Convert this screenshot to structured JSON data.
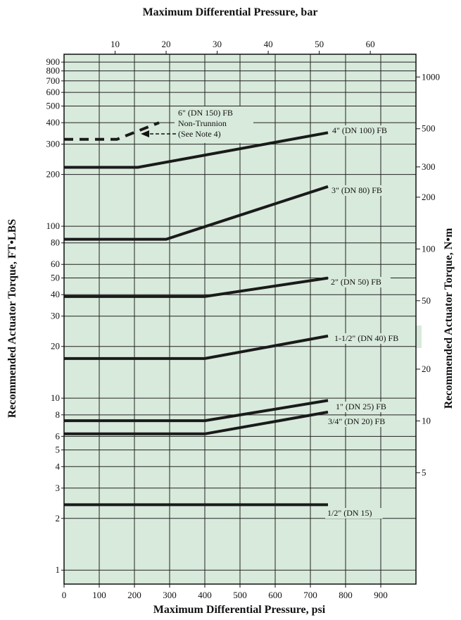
{
  "chart_data": {
    "type": "line",
    "title_top": "Maximum Differential Pressure, bar",
    "xlabel": "Maximum Differential Pressure, psi",
    "ylabel_left": "Recommended Actuator Torque, FT•LBS",
    "ylabel_right": "Recommended Actuator Torque, N•m",
    "x_scale": "linear",
    "y_scale": "log",
    "xlim": [
      0,
      1000
    ],
    "ylim": [
      0.83,
      1000
    ],
    "background_color": "#d8eadb",
    "line_color": "#1a1a1a",
    "grid": true,
    "x_ticks": [
      0,
      100,
      200,
      300,
      400,
      500,
      600,
      700,
      800,
      900
    ],
    "x_tick_labels": [
      "0",
      "100",
      "200",
      "300",
      "400",
      "500",
      "600",
      "700",
      "800",
      "900"
    ],
    "x_grid": [
      0,
      100,
      200,
      300,
      400,
      500,
      600,
      700,
      800,
      900,
      1000
    ],
    "bar_ticks": [
      10,
      20,
      30,
      40,
      50,
      60
    ],
    "bar_tick_labels": [
      "10",
      "20",
      "30",
      "40",
      "50",
      "60"
    ],
    "y_left_ticks": [
      1,
      2,
      3,
      4,
      5,
      6,
      8,
      10,
      20,
      30,
      40,
      50,
      60,
      80,
      100,
      200,
      300,
      400,
      500,
      600,
      700,
      800,
      900
    ],
    "y_left_tick_labels": [
      "1",
      "2",
      "3",
      "4",
      "5",
      "6",
      "8",
      "10",
      "20",
      "30",
      "40",
      "50",
      "60",
      "80",
      "100",
      "200",
      "300",
      "400",
      "500",
      "600",
      "700",
      "800",
      "900"
    ],
    "y_right_ticks": [
      5,
      10,
      20,
      50,
      100,
      200,
      300,
      500,
      1000
    ],
    "y_right_tick_labels": [
      "5",
      "10",
      "20",
      "50",
      "100",
      "200",
      "300",
      "500",
      "1000"
    ],
    "series": [
      {
        "name": "1/2\" (DN 15)",
        "style": "solid",
        "x": [
          0,
          750
        ],
        "y": [
          2.4,
          2.4
        ]
      },
      {
        "name": "3/4\" (DN 20) FB",
        "style": "solid",
        "x": [
          0,
          400,
          750
        ],
        "y": [
          6.2,
          6.2,
          8.3
        ]
      },
      {
        "name": "1\" (DN 25) FB",
        "style": "solid",
        "x": [
          0,
          400,
          750
        ],
        "y": [
          7.4,
          7.4,
          9.7
        ]
      },
      {
        "name": "1-1/2\" (DN 40) FB",
        "style": "solid",
        "x": [
          0,
          400,
          750
        ],
        "y": [
          17,
          17,
          23
        ]
      },
      {
        "name": "2\" (DN 50) FB",
        "style": "solid",
        "x": [
          0,
          400,
          750
        ],
        "y": [
          39,
          39,
          50
        ]
      },
      {
        "name": "3\" (DN 80) FB",
        "style": "solid",
        "x": [
          0,
          290,
          750
        ],
        "y": [
          84,
          84,
          170
        ]
      },
      {
        "name": "4\" (DN 100) FB",
        "style": "solid",
        "x": [
          0,
          210,
          750
        ],
        "y": [
          220,
          220,
          350
        ]
      },
      {
        "name": "6\" (DN 150) FB",
        "style": "dashed",
        "x": [
          0,
          100,
          150,
          270
        ],
        "y": [
          320,
          320,
          320,
          400
        ]
      }
    ],
    "annotations": [
      "6\" (DN 150) FB",
      "Non-Trunnion",
      "(See Note 4)"
    ]
  }
}
